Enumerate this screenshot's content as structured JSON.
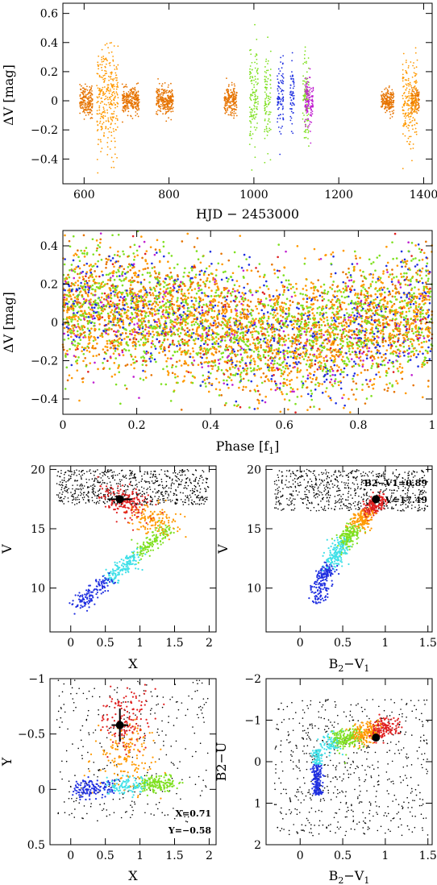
{
  "colors": {
    "orange": "#ff9900",
    "dark_orange": "#e67300",
    "green": "#7fe020",
    "blue": "#2030e0",
    "magenta": "#c020d0",
    "cyan": "#40e0e8",
    "red": "#e02020",
    "dark_red": "#a00000",
    "black": "#000000"
  },
  "chart_data": [
    {
      "type": "scatter",
      "id": "lightcurve",
      "xlabel": "HJD − 2453000",
      "ylabel": "ΔV [mag]",
      "xlim": [
        550,
        1420
      ],
      "ylim": [
        0.67,
        -0.57
      ],
      "xticks": [
        600,
        800,
        1000,
        1200,
        1400
      ],
      "yticks": [
        -0.4,
        -0.2,
        0,
        0.2,
        0.4,
        0.6
      ],
      "series": [
        {
          "color": "dark_orange",
          "seasons": [
            [
              590,
              620,
              0.15
            ],
            [
              690,
              730,
              0.12
            ],
            [
              770,
              810,
              0.14
            ],
            [
              930,
              960,
              0.14
            ],
            [
              1300,
              1330,
              0.12
            ],
            [
              1370,
              1390,
              0.12
            ]
          ]
        },
        {
          "color": "orange",
          "seasons": [
            [
              630,
              680,
              0.5
            ],
            [
              1350,
              1385,
              0.4
            ]
          ]
        },
        {
          "color": "green",
          "seasons": [
            [
              990,
              1010,
              0.55
            ],
            [
              1025,
              1040,
              0.5
            ],
            [
              1115,
              1130,
              0.5
            ]
          ]
        },
        {
          "color": "blue",
          "seasons": [
            [
              1055,
              1070,
              0.35
            ],
            [
              1085,
              1095,
              0.3
            ]
          ]
        },
        {
          "color": "magenta",
          "seasons": [
            [
              1120,
              1140,
              0.25
            ]
          ]
        }
      ]
    },
    {
      "type": "scatter",
      "id": "phase",
      "xlabel": "Phase [f1]",
      "ylabel": "ΔV [mag]",
      "xlim": [
        0,
        1
      ],
      "ylim": [
        0.48,
        -0.48
      ],
      "xticks": [
        0,
        0.2,
        0.4,
        0.6,
        0.8,
        1
      ],
      "yticks": [
        -0.4,
        -0.2,
        0,
        0.2,
        0.4
      ],
      "series": [
        "orange",
        "green",
        "dark_orange",
        "blue",
        "magenta",
        "red"
      ]
    },
    {
      "type": "scatter",
      "id": "cmd_x_v",
      "xlabel": "X",
      "ylabel": "V",
      "xlim": [
        -0.3,
        2.1
      ],
      "ylim": [
        20.3,
        6.3
      ],
      "xticks": [
        0,
        0.5,
        1,
        1.5,
        2
      ],
      "yticks": [
        10,
        15,
        20
      ],
      "star": {
        "x": 0.71,
        "y": 17.49,
        "xerr": 0.18,
        "yerr": 0
      }
    },
    {
      "type": "scatter",
      "id": "cmd_bv_v",
      "xlabel": "B2−V1",
      "ylabel": "V",
      "xlim": [
        -0.4,
        1.55
      ],
      "ylim": [
        20.3,
        6.3
      ],
      "xticks": [
        0,
        0.5,
        1,
        1.5
      ],
      "yticks": [
        10,
        15,
        20
      ],
      "star": {
        "x": 0.89,
        "y": 17.49
      },
      "annotations": [
        "B2−V1=0.89",
        "V=17.49"
      ]
    },
    {
      "type": "scatter",
      "id": "ccd_x_y",
      "xlabel": "X",
      "ylabel": "Y",
      "xlim": [
        -0.3,
        2.1
      ],
      "ylim": [
        -1.0,
        0.5
      ],
      "xticks": [
        0,
        0.5,
        1,
        1.5,
        2
      ],
      "yticks": [
        -1,
        -0.5,
        0,
        0.5
      ],
      "star": {
        "x": 0.71,
        "y": -0.58,
        "xerr": 0.12,
        "yerr": 0.15
      },
      "annotations": [
        "X=0.71",
        "Y=−0.58"
      ]
    },
    {
      "type": "scatter",
      "id": "ccd_bv_bu",
      "xlabel": "B2−V1",
      "ylabel": "B2−U",
      "xlim": [
        -0.4,
        1.55
      ],
      "ylim": [
        -2.0,
        2.0
      ],
      "xticks": [
        0,
        0.5,
        1,
        1.5
      ],
      "yticks": [
        -2,
        -1,
        0,
        1,
        2
      ],
      "star": {
        "x": 0.89,
        "y": -0.58
      }
    }
  ],
  "labels": {
    "lc_x": "HJD − 2453000",
    "lc_y": "ΔV [mag]",
    "ph_x": "Phase [f",
    "ph_x_sub": "1",
    "ph_x_end": "]",
    "ph_y": "ΔV [mag]",
    "p3_x": "X",
    "p3_y": "V",
    "p4_x_a": "B",
    "p4_x_s1": "2",
    "p4_x_b": "−V",
    "p4_x_s2": "1",
    "p4_y": "V",
    "p4_ann1": "B2−V1=0.89",
    "p4_ann2": "V=17.49",
    "p5_x": "X",
    "p5_y": "Y",
    "p5_ann1": "X=0.71",
    "p5_ann2": "Y=−0.58",
    "p6_x_a": "B",
    "p6_x_s1": "2",
    "p6_x_b": "−V",
    "p6_x_s2": "1",
    "p6_y": "B2−U"
  }
}
